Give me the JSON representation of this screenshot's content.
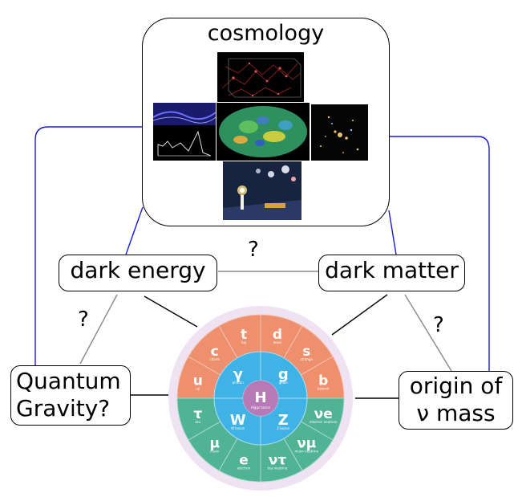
{
  "cosmology": {
    "title": "cosmology"
  },
  "nodes": {
    "dark_energy": "dark energy",
    "dark_matter": "dark matter",
    "quantum_gravity_line1": "Quantum",
    "quantum_gravity_line2": "Gravity?",
    "nu_mass_line1": "origin of",
    "nu_mass_line2": "ν  mass"
  },
  "question_mark": "?",
  "colors": {
    "link_blue": "#1a1ad6",
    "link_grey": "#888888",
    "link_black": "#000000",
    "quark_orange": "#ee8f6e",
    "lepton_green": "#4fb394",
    "boson_blue": "#3fb3e6",
    "higgs_purple": "#b77ab7",
    "ring_lavender": "#efe3f3"
  },
  "standard_model": {
    "higgs": {
      "symbol": "H",
      "name": "Higgs boson"
    },
    "gauge_bosons": [
      {
        "symbol": "γ",
        "name": "photon"
      },
      {
        "symbol": "g",
        "name": "gluon"
      },
      {
        "symbol": "Z",
        "name": "Z boson"
      },
      {
        "symbol": "W",
        "name": "W boson"
      }
    ],
    "quarks": [
      {
        "symbol": "u",
        "name": "up"
      },
      {
        "symbol": "c",
        "name": "charm"
      },
      {
        "symbol": "t",
        "name": "top"
      },
      {
        "symbol": "d",
        "name": "down"
      },
      {
        "symbol": "s",
        "name": "strange"
      },
      {
        "symbol": "b",
        "name": "bottom"
      }
    ],
    "leptons": [
      {
        "symbol": "νe",
        "name": "electron neutrino"
      },
      {
        "symbol": "νμ",
        "name": "muon neutrino"
      },
      {
        "symbol": "ντ",
        "name": "tau neutrino"
      },
      {
        "symbol": "e",
        "name": "electron"
      },
      {
        "symbol": "μ",
        "name": "muon"
      },
      {
        "symbol": "τ",
        "name": "tau"
      }
    ]
  }
}
